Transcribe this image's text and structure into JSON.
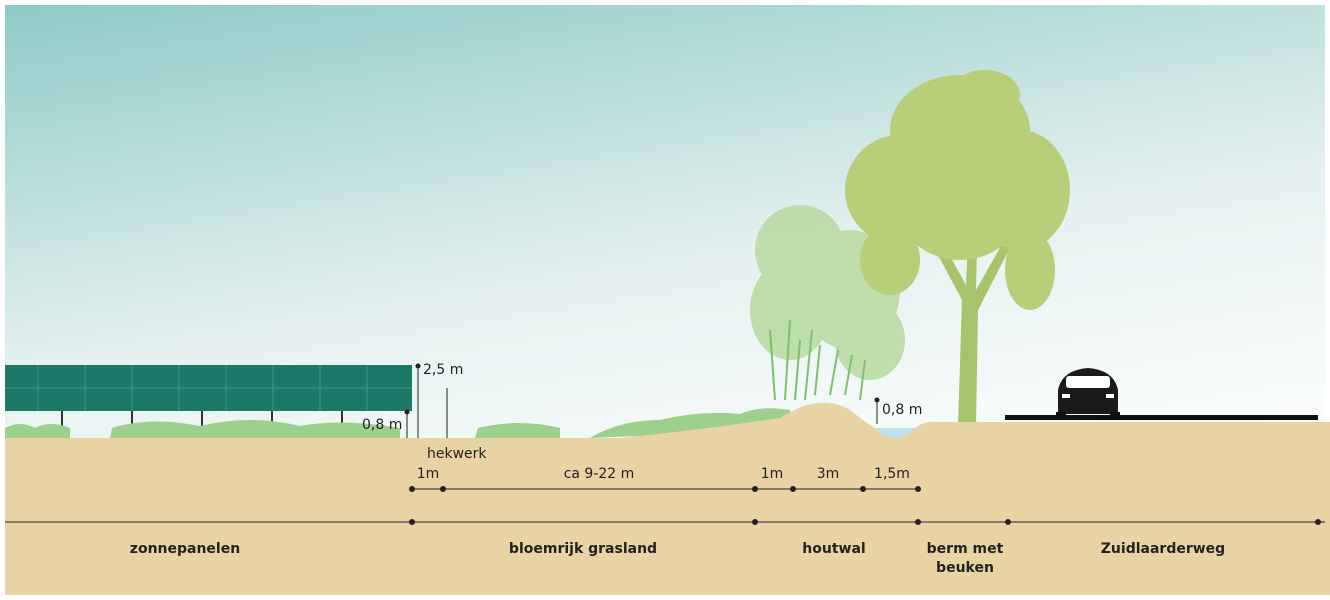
{
  "annotations": {
    "panel_height": "2,5 m",
    "panel_clearance": "0,8 m",
    "fence": "hekwerk",
    "ditch_depth": "0,8 m"
  },
  "dimensions": [
    "1m",
    "ca 9-22 m",
    "1m",
    "3m",
    "1,5m"
  ],
  "zones": [
    {
      "lines": [
        "zonnepanelen"
      ]
    },
    {
      "lines": [
        "bloemrijk grasland"
      ]
    },
    {
      "lines": [
        "houtwal"
      ]
    },
    {
      "lines": [
        "berm met",
        "beuken"
      ]
    },
    {
      "lines": [
        "Zuidlaarderweg"
      ]
    }
  ]
}
